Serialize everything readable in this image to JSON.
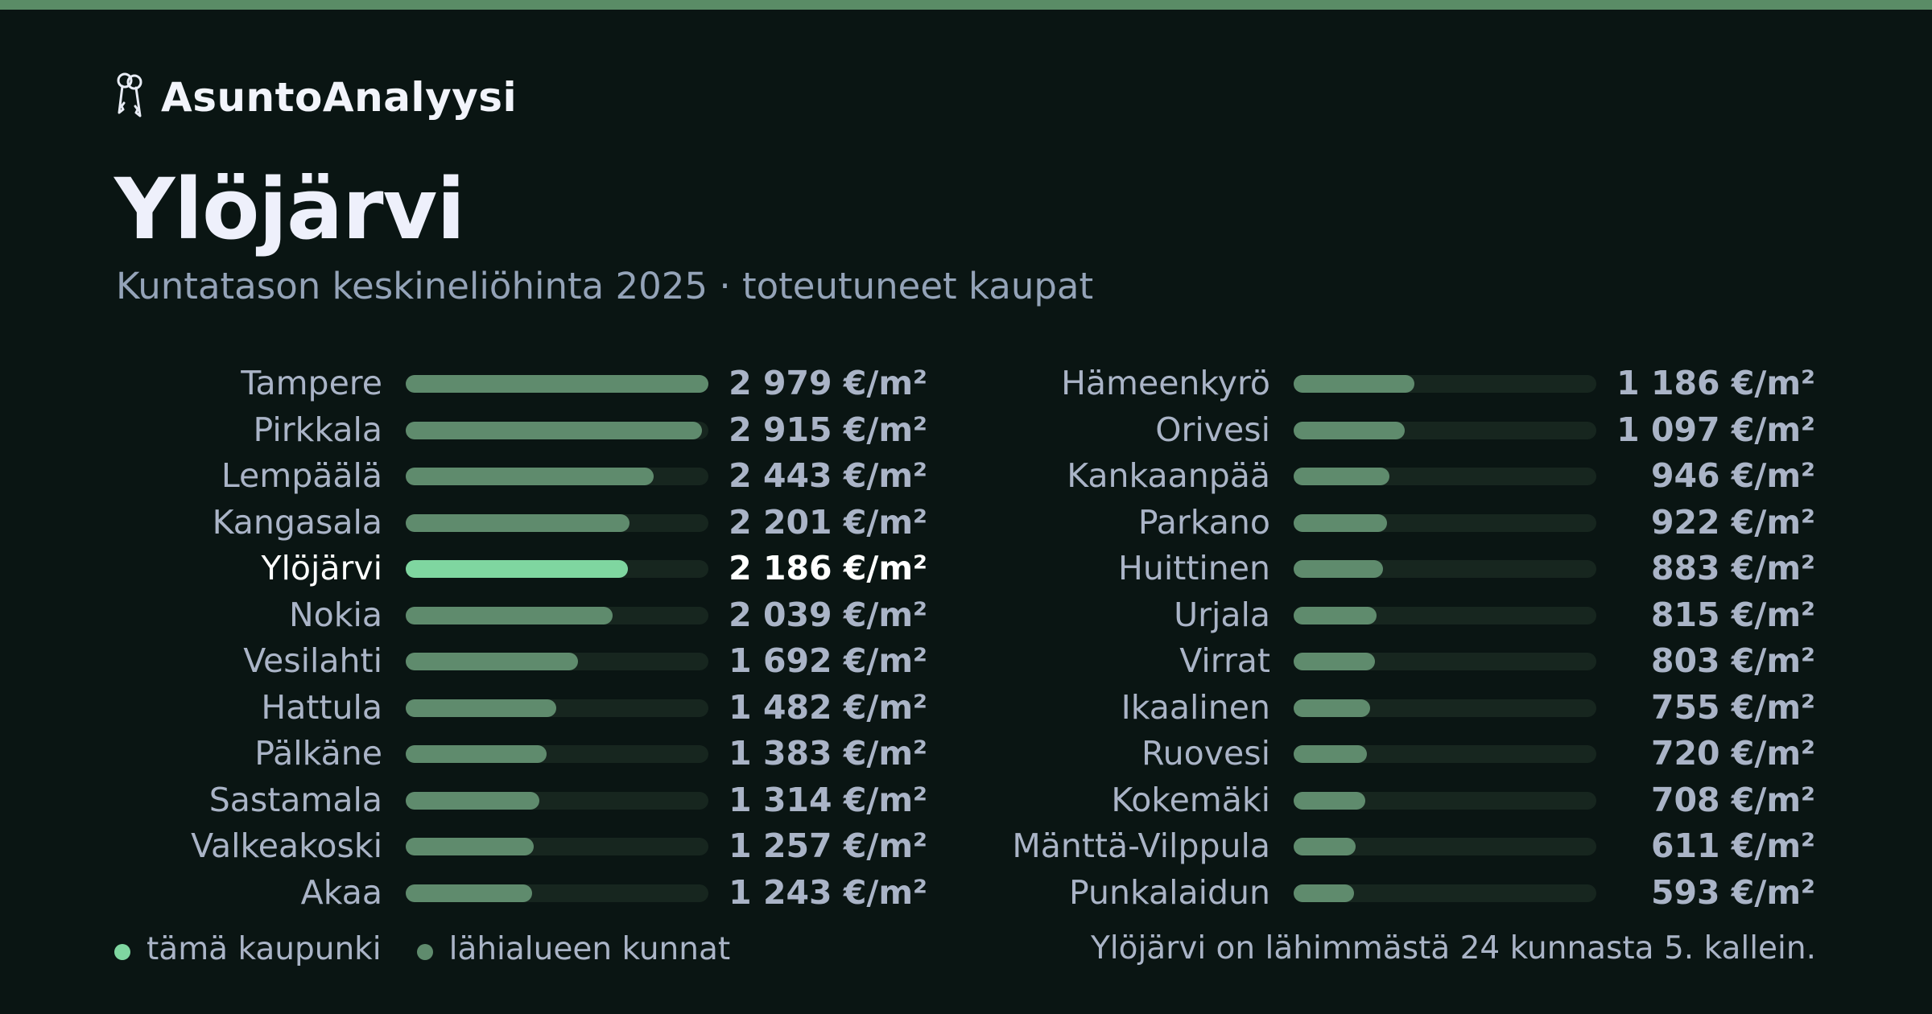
{
  "brand": {
    "name": "AsuntoAnalyysi",
    "icon": "keys-icon"
  },
  "title": "Ylöjärvi",
  "subtitle": "Kuntatason keskineliöhinta 2025 · toteutuneet kaupat",
  "colors": {
    "accent_bar": "#5a8c66",
    "highlight": "#7fd6a0",
    "others": "#5f8b6d",
    "track": "#17261f",
    "background": "#0a1513"
  },
  "legend": {
    "this_city": "tämä kaupunki",
    "nearby": "lähialueen kunnat"
  },
  "footnote": "Ylöjärvi on lähimmästä 24 kunnasta 5. kallein.",
  "chart_data": {
    "type": "bar",
    "orientation": "horizontal",
    "unit": "€/m²",
    "xlim": [
      0,
      2979
    ],
    "highlight": "Ylöjärvi",
    "categories": [
      "Tampere",
      "Pirkkala",
      "Lempäälä",
      "Kangasala",
      "Ylöjärvi",
      "Nokia",
      "Vesilahti",
      "Hattula",
      "Pälkäne",
      "Sastamala",
      "Valkeakoski",
      "Akaa",
      "Hämeenkyrö",
      "Orivesi",
      "Kankaanpää",
      "Parkano",
      "Huittinen",
      "Urjala",
      "Virrat",
      "Ikaalinen",
      "Ruovesi",
      "Kokemäki",
      "Mänttä-Vilppula",
      "Punkalaidun"
    ],
    "values": [
      2979,
      2915,
      2443,
      2201,
      2186,
      2039,
      1692,
      1482,
      1383,
      1314,
      1257,
      1243,
      1186,
      1097,
      946,
      922,
      883,
      815,
      803,
      755,
      720,
      708,
      611,
      593
    ],
    "labels": [
      "2 979 €/m²",
      "2 915 €/m²",
      "2 443 €/m²",
      "2 201 €/m²",
      "2 186 €/m²",
      "2 039 €/m²",
      "1 692 €/m²",
      "1 482 €/m²",
      "1 383 €/m²",
      "1 314 €/m²",
      "1 257 €/m²",
      "1 243 €/m²",
      "1 186 €/m²",
      "1 097 €/m²",
      "946 €/m²",
      "922 €/m²",
      "883 €/m²",
      "815 €/m²",
      "803 €/m²",
      "755 €/m²",
      "720 €/m²",
      "708 €/m²",
      "611 €/m²",
      "593 €/m²"
    ]
  }
}
